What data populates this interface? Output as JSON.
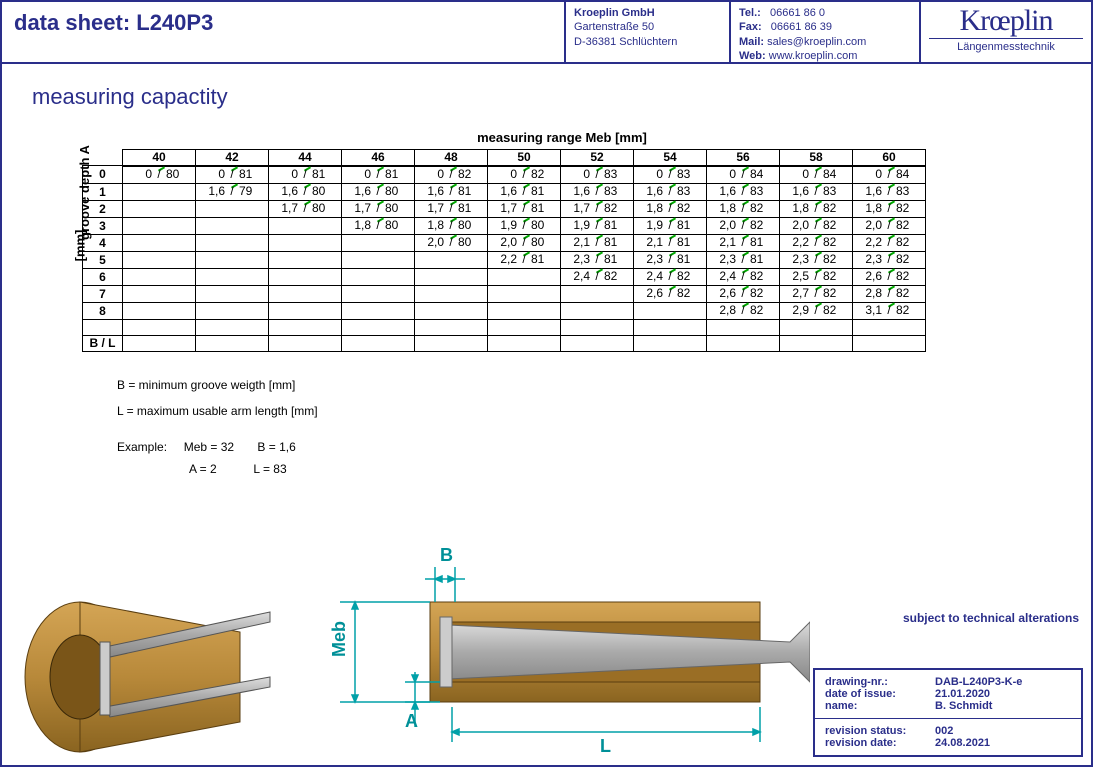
{
  "header": {
    "title": "data sheet:  L240P3",
    "company": "Kroeplin GmbH",
    "street": "Gartenstraße 50",
    "city": "D-36381 Schlüchtern",
    "tel_lbl": "Tel.:",
    "tel": "06661 86 0",
    "fax_lbl": "Fax:",
    "fax": "06661 86 39",
    "mail_lbl": "Mail:",
    "mail": "sales@kroeplin.com",
    "web_lbl": "Web:",
    "web": "www.kroeplin.com",
    "logo": "Krœplin",
    "logo_sub": "Längenmesstechnik"
  },
  "section_title": "measuring capactity",
  "table": {
    "x_label": "measuring range Meb [mm]",
    "y_label": "groove depth A",
    "y_unit": "[mm]",
    "col_headers": [
      "40",
      "42",
      "44",
      "46",
      "48",
      "50",
      "52",
      "54",
      "56",
      "58",
      "60"
    ],
    "row_headers": [
      "0",
      "1",
      "2",
      "3",
      "4",
      "5",
      "6",
      "7",
      "8",
      "",
      "B / L"
    ],
    "cells": [
      [
        [
          "0",
          "80"
        ],
        [
          "0",
          "81"
        ],
        [
          "0",
          "81"
        ],
        [
          "0",
          "81"
        ],
        [
          "0",
          "82"
        ],
        [
          "0",
          "82"
        ],
        [
          "0",
          "83"
        ],
        [
          "0",
          "83"
        ],
        [
          "0",
          "84"
        ],
        [
          "0",
          "84"
        ],
        [
          "0",
          "84"
        ]
      ],
      [
        null,
        [
          "1,6",
          "79"
        ],
        [
          "1,6",
          "80"
        ],
        [
          "1,6",
          "80"
        ],
        [
          "1,6",
          "81"
        ],
        [
          "1,6",
          "81"
        ],
        [
          "1,6",
          "83"
        ],
        [
          "1,6",
          "83"
        ],
        [
          "1,6",
          "83"
        ],
        [
          "1,6",
          "83"
        ],
        [
          "1,6",
          "83"
        ]
      ],
      [
        null,
        null,
        [
          "1,7",
          "80"
        ],
        [
          "1,7",
          "80"
        ],
        [
          "1,7",
          "81"
        ],
        [
          "1,7",
          "81"
        ],
        [
          "1,7",
          "82"
        ],
        [
          "1,8",
          "82"
        ],
        [
          "1,8",
          "82"
        ],
        [
          "1,8",
          "82"
        ],
        [
          "1,8",
          "82"
        ]
      ],
      [
        null,
        null,
        null,
        [
          "1,8",
          "80"
        ],
        [
          "1,8",
          "80"
        ],
        [
          "1,9",
          "80"
        ],
        [
          "1,9",
          "81"
        ],
        [
          "1,9",
          "81"
        ],
        [
          "2,0",
          "82"
        ],
        [
          "2,0",
          "82"
        ],
        [
          "2,0",
          "82"
        ]
      ],
      [
        null,
        null,
        null,
        null,
        [
          "2,0",
          "80"
        ],
        [
          "2,0",
          "80"
        ],
        [
          "2,1",
          "81"
        ],
        [
          "2,1",
          "81"
        ],
        [
          "2,1",
          "81"
        ],
        [
          "2,2",
          "82"
        ],
        [
          "2,2",
          "82"
        ]
      ],
      [
        null,
        null,
        null,
        null,
        null,
        [
          "2,2",
          "81"
        ],
        [
          "2,3",
          "81"
        ],
        [
          "2,3",
          "81"
        ],
        [
          "2,3",
          "81"
        ],
        [
          "2,3",
          "82"
        ],
        [
          "2,3",
          "82"
        ]
      ],
      [
        null,
        null,
        null,
        null,
        null,
        null,
        [
          "2,4",
          "82"
        ],
        [
          "2,4",
          "82"
        ],
        [
          "2,4",
          "82"
        ],
        [
          "2,5",
          "82"
        ],
        [
          "2,6",
          "82"
        ]
      ],
      [
        null,
        null,
        null,
        null,
        null,
        null,
        null,
        [
          "2,6",
          "82"
        ],
        [
          "2,6",
          "82"
        ],
        [
          "2,7",
          "82"
        ],
        [
          "2,8",
          "82"
        ]
      ],
      [
        null,
        null,
        null,
        null,
        null,
        null,
        null,
        null,
        [
          "2,8",
          "82"
        ],
        [
          "2,9",
          "82"
        ],
        [
          "3,1",
          "82"
        ]
      ],
      [
        null,
        null,
        null,
        null,
        null,
        null,
        null,
        null,
        null,
        null,
        null
      ],
      [
        null,
        null,
        null,
        null,
        null,
        null,
        null,
        null,
        null,
        null,
        null
      ]
    ]
  },
  "legend": {
    "b": "B = minimum groove weigth [mm]",
    "l": "L = maximum usable arm length [mm]"
  },
  "example": {
    "lbl": "Example:",
    "meb": "Meb = 32",
    "b": "B = 1,6",
    "a": "A = 2",
    "l": "L = 83"
  },
  "diagram": {
    "labels": {
      "B": "B",
      "Meb": "Meb",
      "A": "A",
      "L": "L"
    },
    "colors": {
      "brass": "#b8893a",
      "brass_dark": "#8a6420",
      "steel": "#b8b8b8",
      "steel_dark": "#888",
      "dim": "#00a0a8",
      "dim_text": "#009098"
    }
  },
  "footer": {
    "note": "subject to technical alterations",
    "rows1": [
      [
        "drawing-nr.:",
        "DAB-L240P3-K-e"
      ],
      [
        "date of issue:",
        "21.01.2020"
      ],
      [
        "name:",
        "B. Schmidt"
      ]
    ],
    "rows2": [
      [
        "revision status:",
        "002"
      ],
      [
        "revision date:",
        "24.08.2021"
      ]
    ]
  }
}
